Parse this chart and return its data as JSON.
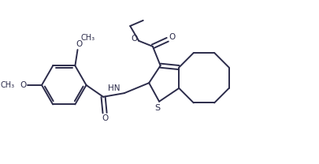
{
  "bg_color": "#ffffff",
  "line_color": "#2b2b4a",
  "line_width": 1.4,
  "figsize": [
    4.05,
    2.08
  ],
  "dpi": 100,
  "xlim": [
    0,
    10.2
  ],
  "ylim": [
    0,
    5.3
  ]
}
